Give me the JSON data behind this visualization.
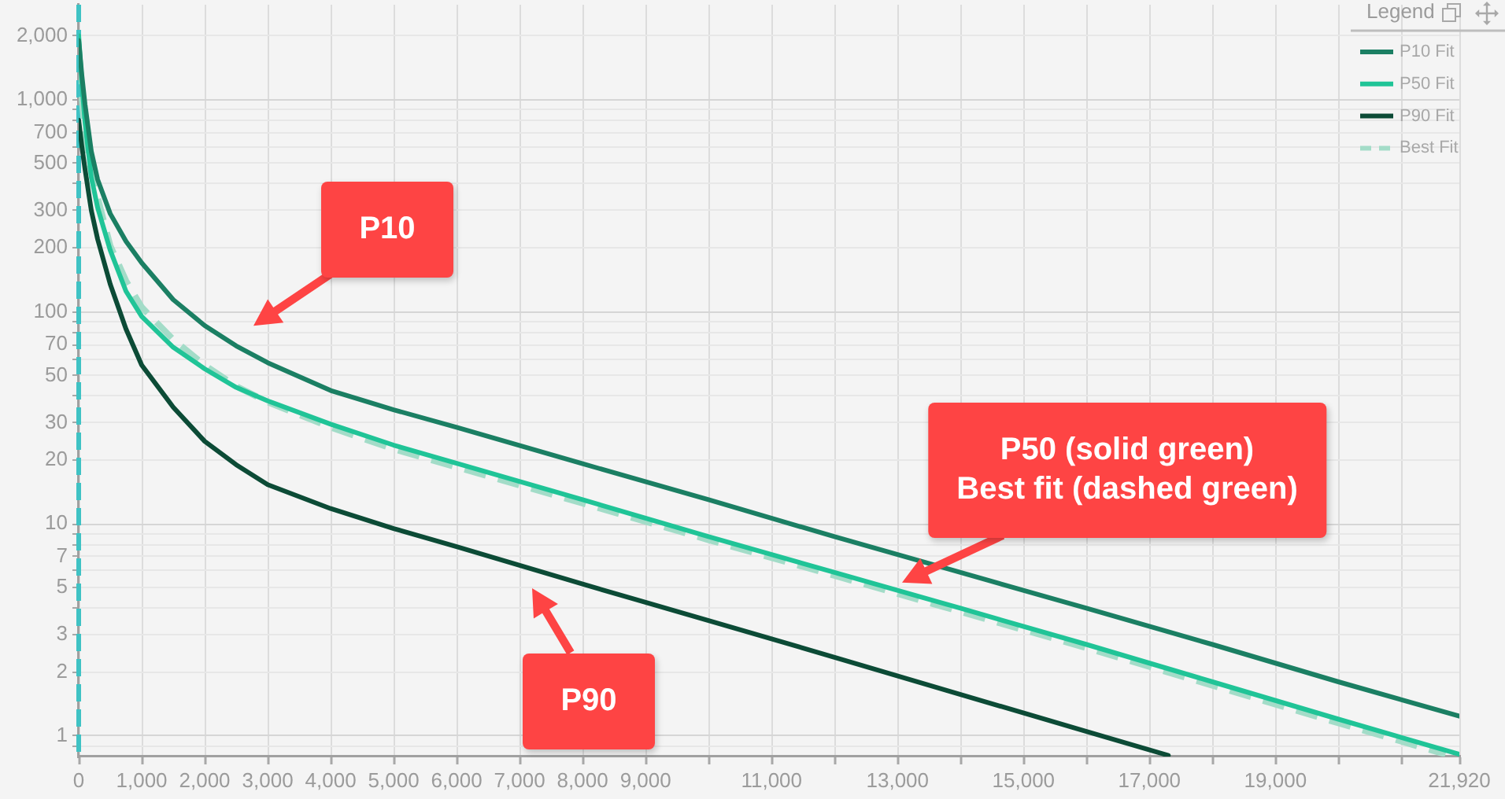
{
  "chart_data": {
    "type": "line",
    "xlim": [
      0,
      21920
    ],
    "xticks": [
      0,
      {
        "value": 1000,
        "label": "1,000"
      },
      {
        "value": 2000,
        "label": "2,000"
      },
      {
        "value": 3000,
        "label": "3,000"
      },
      {
        "value": 4000,
        "label": "4,000"
      },
      {
        "value": 5000,
        "label": "5,000"
      },
      {
        "value": 6000,
        "label": "6,000"
      },
      {
        "value": 7000,
        "label": "7,000"
      },
      {
        "value": 8000,
        "label": "8,000"
      },
      {
        "value": 9000,
        "label": "9,000"
      },
      {
        "value": 10000,
        "label": null
      },
      {
        "value": 11000,
        "label": "11,000"
      },
      {
        "value": 12000,
        "label": null
      },
      {
        "value": 13000,
        "label": "13,000"
      },
      {
        "value": 14000,
        "label": null
      },
      {
        "value": 15000,
        "label": "15,000"
      },
      {
        "value": 16000,
        "label": null
      },
      {
        "value": 17000,
        "label": "17,000"
      },
      {
        "value": 18000,
        "label": null
      },
      {
        "value": 19000,
        "label": "19,000"
      },
      {
        "value": 20000,
        "label": null
      },
      {
        "value": 21000,
        "label": null
      },
      {
        "value": 21920,
        "label": "21,920"
      }
    ],
    "ylim": [
      0.8,
      2800
    ],
    "yticks": [
      {
        "value": 0.9,
        "label": null
      },
      1,
      2,
      3,
      {
        "value": 4,
        "label": null
      },
      5,
      {
        "value": 6,
        "label": null
      },
      7,
      {
        "value": 8,
        "label": null
      },
      {
        "value": 9,
        "label": null
      },
      10,
      20,
      30,
      {
        "value": 40,
        "label": null
      },
      50,
      {
        "value": 60,
        "label": null
      },
      70,
      {
        "value": 80,
        "label": null
      },
      {
        "value": 90,
        "label": null
      },
      100,
      200,
      300,
      {
        "value": 400,
        "label": null
      },
      500,
      {
        "value": 600,
        "label": null
      },
      700,
      {
        "value": 800,
        "label": null
      },
      {
        "value": 900,
        "label": null
      },
      {
        "value": 1000,
        "label": "1,000"
      },
      {
        "value": 2000,
        "label": "2,000"
      }
    ],
    "log": true,
    "grid": true,
    "legend": "top right",
    "legend_title": "Legend",
    "marker": "none",
    "series": [
      {
        "name": "P10 Fit",
        "color": "#1b7f63",
        "x": [
          0,
          50,
          100,
          200,
          300,
          500,
          750,
          1000,
          1500,
          2000,
          2500,
          3000,
          4000,
          5000,
          6000,
          8000,
          10000,
          12000,
          14000,
          16000,
          18000,
          20000,
          21920
        ],
        "values": [
          1900,
          1300,
          950,
          570,
          420,
          290,
          215,
          170,
          114,
          86,
          69,
          57.5,
          42.5,
          34.5,
          28.5,
          19.2,
          13,
          8.7,
          5.9,
          4,
          2.7,
          1.8,
          1.24
        ]
      },
      {
        "name": "P50 Fit",
        "color": "#20c497",
        "x": [
          0,
          50,
          100,
          200,
          300,
          500,
          750,
          1000,
          1500,
          2000,
          2500,
          3000,
          4000,
          5000,
          6000,
          8000,
          10000,
          12000,
          14000,
          16000,
          18000,
          20000,
          21920
        ],
        "values": [
          2000,
          1200,
          780,
          430,
          310,
          195,
          125,
          95,
          68,
          53.8,
          44,
          38,
          29.5,
          23.5,
          19.3,
          13,
          8.7,
          5.9,
          4,
          2.7,
          1.8,
          1.2,
          0.82
        ]
      },
      {
        "name": "P90 Fit",
        "color": "#0c4b36",
        "x": [
          0,
          50,
          100,
          200,
          300,
          500,
          750,
          1000,
          1500,
          2000,
          2500,
          3000,
          4000,
          5000,
          6000,
          8000,
          10000,
          12000,
          14000,
          16000,
          17300
        ],
        "values": [
          800,
          600,
          470,
          300,
          220,
          135,
          83,
          56,
          35.5,
          24.5,
          19,
          15.3,
          11.8,
          9.5,
          7.8,
          5.2,
          3.5,
          2.35,
          1.57,
          1.05,
          0.81
        ]
      },
      {
        "name": "Best Fit",
        "color": "#a3dcc8",
        "line_style": "dashed",
        "x": [
          0,
          50,
          100,
          200,
          300,
          500,
          750,
          1000,
          1500,
          2000,
          2500,
          3000,
          4000,
          5000,
          6000,
          8000,
          10000,
          12000,
          14000,
          16000,
          18000,
          20000,
          21700
        ],
        "values": [
          1500,
          1000,
          700,
          450,
          345,
          205,
          140,
          105,
          74,
          56,
          44.5,
          37.5,
          28.5,
          22.5,
          18.5,
          12.5,
          8.4,
          5.7,
          3.85,
          2.6,
          1.73,
          1.15,
          0.82
        ]
      }
    ],
    "ref_lines": [
      {
        "axis": "x",
        "value": 0,
        "color": "#3fc2c4",
        "line_style": "dashed"
      }
    ],
    "annotations": [
      "P10",
      "P50 (solid green)\nBest fit (dashed green)",
      "P90"
    ]
  }
}
